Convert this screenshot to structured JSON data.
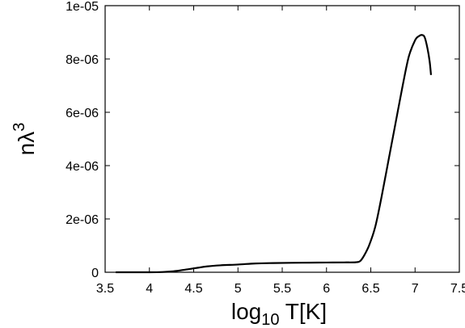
{
  "chart_data": {
    "type": "line",
    "title": "",
    "xlabel": {
      "base": "log",
      "sub": "10",
      "rest": " T[K]"
    },
    "ylabel": {
      "base": "nλ",
      "sup": "3"
    },
    "xlim": [
      3.5,
      7.5
    ],
    "ylim": [
      0,
      1e-05
    ],
    "x_ticks": [
      3.5,
      4,
      4.5,
      5,
      5.5,
      6,
      6.5,
      7,
      7.5
    ],
    "x_tick_labels": [
      "3.5",
      "4",
      "4.5",
      "5",
      "5.5",
      "6",
      "6.5",
      "7",
      "7.5"
    ],
    "y_ticks": [
      0,
      2e-06,
      4e-06,
      6e-06,
      8e-06,
      1e-05
    ],
    "y_tick_labels": [
      "0",
      "2e-06",
      "4e-06",
      "6e-06",
      "8e-06",
      "1e-05"
    ],
    "grid": false,
    "legend": "none",
    "series": [
      {
        "color": "#000000",
        "x": [
          3.62,
          3.8,
          4.0,
          4.15,
          4.25,
          4.35,
          4.45,
          4.55,
          4.65,
          4.8,
          5.0,
          5.2,
          5.4,
          5.6,
          5.8,
          6.0,
          6.2,
          6.33,
          6.38,
          6.42,
          6.48,
          6.55,
          6.62,
          6.7,
          6.78,
          6.86,
          6.93,
          7.0,
          7.04,
          7.08,
          7.11,
          7.14,
          7.165,
          7.18
        ],
        "y": [
          0,
          0,
          0,
          1e-08,
          3e-08,
          7e-08,
          1.2e-07,
          1.7e-07,
          2.2e-07,
          2.6e-07,
          2.9e-07,
          3.3e-07,
          3.45e-07,
          3.55e-07,
          3.6e-07,
          3.65e-07,
          3.7e-07,
          3.75e-07,
          4.2e-07,
          6e-07,
          1e-06,
          1.7e-06,
          2.8e-06,
          4.2e-06,
          5.6e-06,
          7e-06,
          8.1e-06,
          8.7e-06,
          8.85e-06,
          8.9e-06,
          8.8e-06,
          8.4e-06,
          7.9e-06,
          7.4e-06
        ]
      }
    ]
  }
}
